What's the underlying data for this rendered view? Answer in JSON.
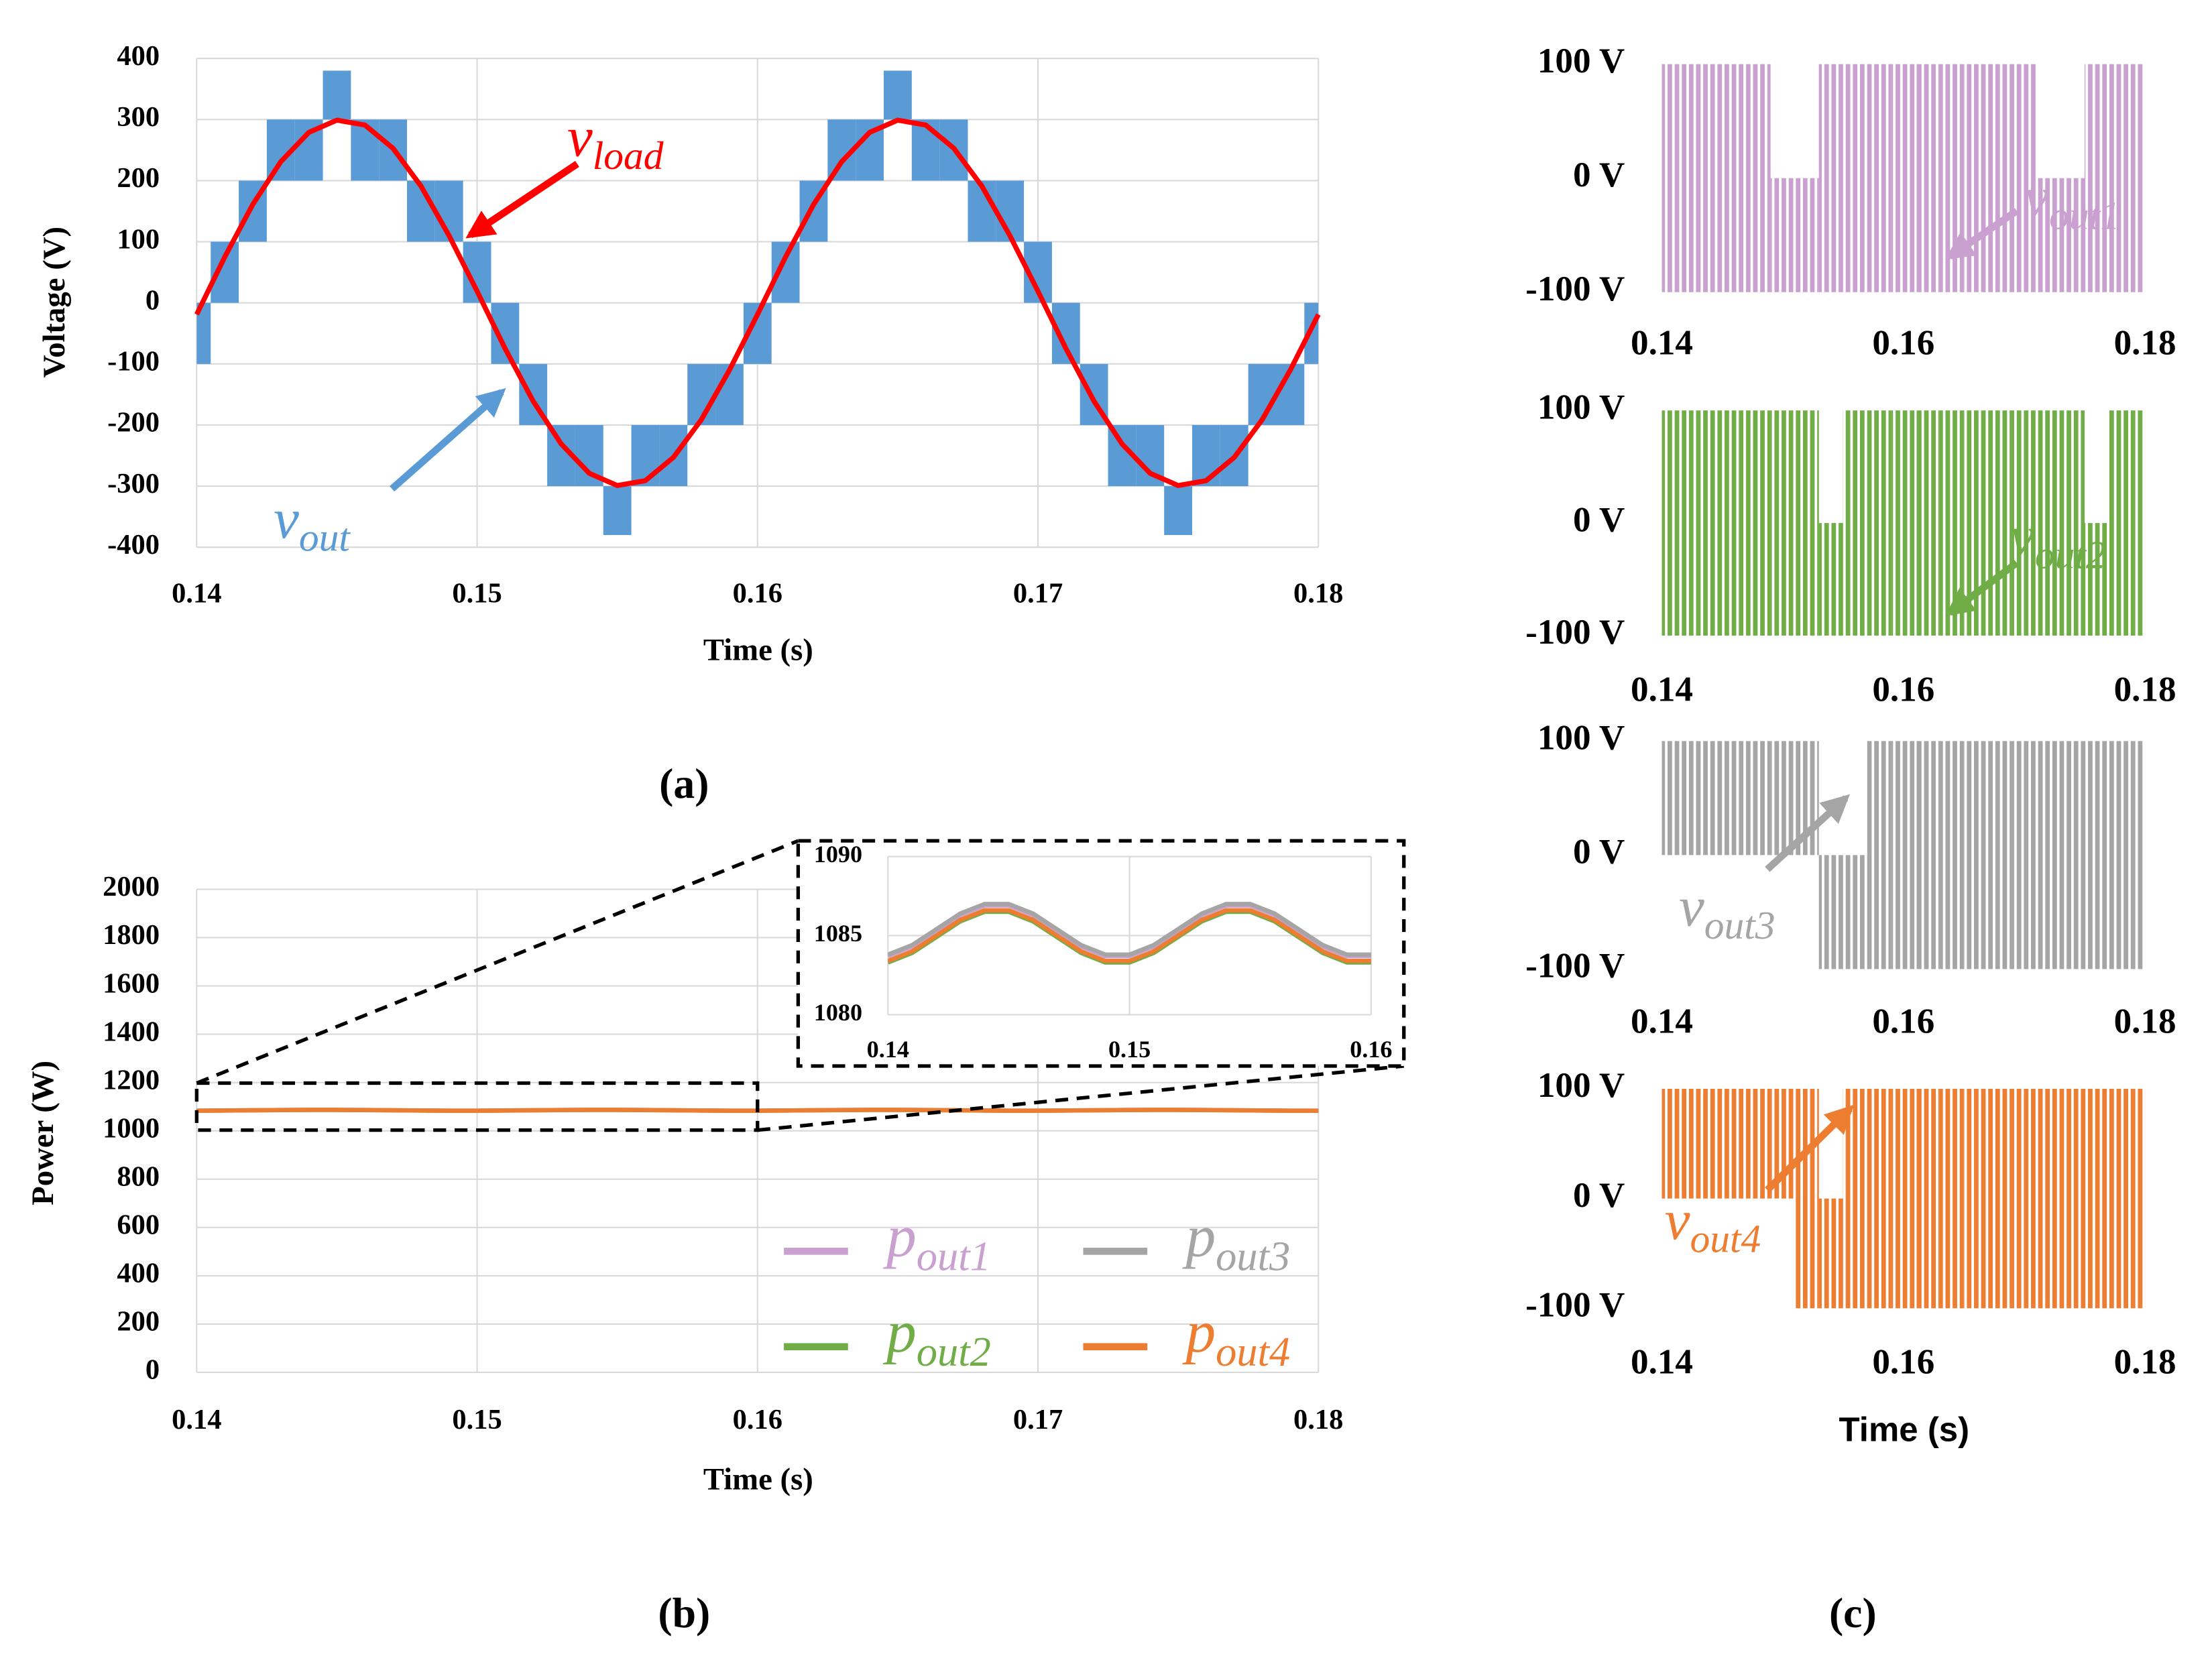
{
  "captions": [
    "(a)",
    "(b)",
    "(c)"
  ],
  "chart_data": [
    {
      "type": "line",
      "xlabel": "Time (s)",
      "ylabel": "Voltage (V)",
      "grid": true,
      "xlim": [
        0.14,
        0.18
      ],
      "xticks": [
        0.14,
        0.15,
        0.16,
        0.17,
        0.18
      ],
      "ylim": [
        -400,
        400
      ],
      "yticks": [
        -400,
        -300,
        -200,
        -100,
        0,
        100,
        200,
        300,
        400
      ],
      "x": [
        0.14,
        0.141,
        0.142,
        0.143,
        0.144,
        0.145,
        0.146,
        0.147,
        0.148,
        0.149,
        0.15,
        0.151,
        0.152,
        0.153,
        0.154,
        0.155,
        0.156,
        0.157,
        0.158,
        0.159,
        0.16,
        0.161,
        0.162,
        0.163,
        0.164,
        0.165,
        0.166,
        0.167,
        0.168,
        0.169,
        0.17,
        0.171,
        0.172,
        0.173,
        0.174,
        0.175,
        0.176,
        0.177,
        0.178,
        0.179,
        0.18
      ],
      "series": [
        {
          "name": {
            "base": "v",
            "sub": "out"
          },
          "color": "#5b9bd5",
          "values": [
            0,
            100,
            200,
            300,
            300,
            380,
            300,
            300,
            200,
            200,
            100,
            0,
            -100,
            -200,
            -200,
            -300,
            -200,
            -200,
            -100,
            -100,
            0,
            100,
            200,
            300,
            300,
            380,
            300,
            300,
            200,
            200,
            100,
            0,
            -100,
            -200,
            -200,
            -300,
            -200,
            -200,
            -100,
            -100,
            0
          ],
          "lower": [
            -100,
            0,
            100,
            200,
            200,
            300,
            200,
            200,
            100,
            100,
            0,
            -100,
            -200,
            -300,
            -300,
            -380,
            -300,
            -300,
            -200,
            -200,
            -100,
            0,
            100,
            200,
            200,
            300,
            200,
            200,
            100,
            100,
            0,
            -100,
            -200,
            -300,
            -300,
            -380,
            -300,
            -300,
            -200,
            -200,
            -100
          ]
        },
        {
          "name": {
            "base": "v",
            "sub": "load"
          },
          "color": "#ff0000",
          "values": [
            -19,
            75,
            161,
            231,
            279,
            299,
            291,
            253,
            191,
            110,
            19,
            -75,
            -161,
            -231,
            -279,
            -299,
            -291,
            -253,
            -191,
            -110,
            -19,
            75,
            161,
            231,
            279,
            299,
            291,
            253,
            191,
            110,
            19,
            -75,
            -161,
            -231,
            -279,
            -299,
            -291,
            -253,
            -191,
            -110,
            -19
          ]
        }
      ]
    },
    {
      "type": "line",
      "xlabel": "Time (s)",
      "ylabel": "Power (W)",
      "grid": true,
      "legend": "lower right",
      "xlim": [
        0.14,
        0.18
      ],
      "xticks": [
        0.14,
        0.15,
        0.16,
        0.17,
        0.18
      ],
      "ylim": [
        0,
        2000
      ],
      "yticks": [
        0,
        200,
        400,
        600,
        800,
        1000,
        1200,
        1400,
        1600,
        1800,
        2000
      ],
      "inset": {
        "xlim": [
          0.14,
          0.16
        ],
        "xticks": [
          0.14,
          0.15,
          0.16
        ],
        "ylim": [
          1080,
          1090
        ],
        "yticks": [
          1080,
          1085,
          1090
        ]
      },
      "x": [
        0.14,
        0.141,
        0.142,
        0.143,
        0.144,
        0.145,
        0.146,
        0.147,
        0.148,
        0.149,
        0.15,
        0.151,
        0.152,
        0.153,
        0.154,
        0.155,
        0.156,
        0.157,
        0.158,
        0.159,
        0.16,
        0.161,
        0.162,
        0.163,
        0.164,
        0.165,
        0.166,
        0.167,
        0.168,
        0.169,
        0.17,
        0.171,
        0.172,
        0.173,
        0.174,
        0.175,
        0.176,
        0.177,
        0.178,
        0.179,
        0.18
      ],
      "series": [
        {
          "name": {
            "base": "p",
            "sub": "out1"
          },
          "color": "#c9a0d0",
          "values": [
            1083.7,
            1084.3,
            1085.3,
            1086.3,
            1086.9,
            1086.9,
            1086.3,
            1085.3,
            1084.3,
            1083.7,
            1083.7,
            1084.3,
            1085.3,
            1086.3,
            1086.9,
            1086.9,
            1086.3,
            1085.3,
            1084.3,
            1083.7,
            1083.7,
            1084.3,
            1085.3,
            1086.3,
            1086.9,
            1086.9,
            1086.3,
            1085.3,
            1084.3,
            1083.7,
            1083.7,
            1084.3,
            1085.3,
            1086.3,
            1086.9,
            1086.9,
            1086.3,
            1085.3,
            1084.3,
            1083.7,
            1083.7
          ]
        },
        {
          "name": {
            "base": "p",
            "sub": "out2"
          },
          "color": "#70ad47",
          "values": [
            1083.3,
            1083.9,
            1084.9,
            1085.9,
            1086.5,
            1086.5,
            1085.9,
            1084.9,
            1083.9,
            1083.3,
            1083.3,
            1083.9,
            1084.9,
            1085.9,
            1086.5,
            1086.5,
            1085.9,
            1084.9,
            1083.9,
            1083.3,
            1083.3,
            1083.9,
            1084.9,
            1085.9,
            1086.5,
            1086.5,
            1085.9,
            1084.9,
            1083.9,
            1083.3,
            1083.3,
            1083.9,
            1084.9,
            1085.9,
            1086.5,
            1086.5,
            1085.9,
            1084.9,
            1083.9,
            1083.3,
            1083.3
          ]
        },
        {
          "name": {
            "base": "p",
            "sub": "out3"
          },
          "color": "#a5a5a5",
          "values": [
            1083.8,
            1084.4,
            1085.4,
            1086.4,
            1087,
            1087,
            1086.4,
            1085.4,
            1084.4,
            1083.8,
            1083.8,
            1084.4,
            1085.4,
            1086.4,
            1087,
            1087,
            1086.4,
            1085.4,
            1084.4,
            1083.8,
            1083.8,
            1084.4,
            1085.4,
            1086.4,
            1087,
            1087,
            1086.4,
            1085.4,
            1084.4,
            1083.8,
            1083.8,
            1084.4,
            1085.4,
            1086.4,
            1087,
            1087,
            1086.4,
            1085.4,
            1084.4,
            1083.8,
            1083.8
          ]
        },
        {
          "name": {
            "base": "p",
            "sub": "out4"
          },
          "color": "#ed7d31",
          "values": [
            1083.4,
            1084,
            1085,
            1086,
            1086.6,
            1086.6,
            1086,
            1085,
            1084,
            1083.4,
            1083.4,
            1084,
            1085,
            1086,
            1086.6,
            1086.6,
            1086,
            1085,
            1084,
            1083.4,
            1083.4,
            1084,
            1085,
            1086,
            1086.6,
            1086.6,
            1086,
            1085,
            1084,
            1083.4,
            1083.4,
            1084,
            1085,
            1086,
            1086.6,
            1086.6,
            1086,
            1085,
            1084,
            1083.4,
            1083.4
          ]
        }
      ]
    },
    {
      "type": "pwm",
      "xlim": [
        0.14,
        0.18
      ],
      "xticks": [
        0.14,
        0.16,
        0.18
      ],
      "ylim": [
        -100,
        100
      ],
      "yticks": [
        {
          "value": -100,
          "label": "-100 V"
        },
        {
          "value": 0,
          "label": "0 V"
        },
        {
          "value": 100,
          "label": "100 V"
        }
      ],
      "x": [
        0.14,
        0.142,
        0.144,
        0.146,
        0.148,
        0.15,
        0.152,
        0.154,
        0.156,
        0.158,
        0.16,
        0.162,
        0.164,
        0.166,
        0.168,
        0.17,
        0.172,
        0.174,
        0.176,
        0.178,
        0.18
      ],
      "series": [
        {
          "name": {
            "base": "v",
            "sub": "out1"
          },
          "color": "#c9a0d0",
          "values": [
            100,
            100,
            100,
            100,
            100,
            0,
            0,
            100,
            100,
            100,
            100,
            100,
            100,
            100,
            100,
            100,
            0,
            0,
            100,
            100,
            100
          ],
          "lower": [
            -100,
            -100,
            -100,
            -100,
            -100,
            -100,
            -100,
            -100,
            -100,
            -100,
            -100,
            -100,
            -100,
            -100,
            -100,
            -100,
            -100,
            -100,
            -100,
            -100,
            -100
          ]
        }
      ]
    },
    {
      "type": "pwm",
      "xlim": [
        0.14,
        0.18
      ],
      "xticks": [
        0.14,
        0.16,
        0.18
      ],
      "ylim": [
        -100,
        100
      ],
      "yticks": [
        {
          "value": -100,
          "label": "-100 V"
        },
        {
          "value": 0,
          "label": "0 V"
        },
        {
          "value": 100,
          "label": "100 V"
        }
      ],
      "x": [
        0.14,
        0.142,
        0.144,
        0.146,
        0.148,
        0.15,
        0.152,
        0.154,
        0.156,
        0.158,
        0.16,
        0.162,
        0.164,
        0.166,
        0.168,
        0.17,
        0.172,
        0.174,
        0.176,
        0.178,
        0.18
      ],
      "series": [
        {
          "name": {
            "base": "v",
            "sub": "out2"
          },
          "color": "#70ad47",
          "values": [
            100,
            100,
            100,
            100,
            100,
            100,
            100,
            0,
            100,
            100,
            100,
            100,
            100,
            100,
            100,
            100,
            100,
            100,
            0,
            100,
            100
          ],
          "lower": [
            -100,
            -100,
            -100,
            -100,
            -100,
            -100,
            -100,
            -100,
            -100,
            -100,
            -100,
            -100,
            -100,
            -100,
            -100,
            -100,
            -100,
            -100,
            -100,
            -100,
            -100
          ]
        }
      ]
    },
    {
      "type": "pwm",
      "xlim": [
        0.14,
        0.18
      ],
      "xticks": [
        0.14,
        0.16,
        0.18
      ],
      "ylim": [
        -100,
        100
      ],
      "yticks": [
        {
          "value": -100,
          "label": "-100 V"
        },
        {
          "value": 0,
          "label": "0 V"
        },
        {
          "value": 100,
          "label": "100 V"
        }
      ],
      "x": [
        0.14,
        0.142,
        0.144,
        0.146,
        0.148,
        0.15,
        0.152,
        0.154,
        0.156,
        0.158,
        0.16,
        0.162,
        0.164,
        0.166,
        0.168,
        0.17,
        0.172,
        0.174,
        0.176,
        0.178,
        0.18
      ],
      "series": [
        {
          "name": {
            "base": "v",
            "sub": "out3"
          },
          "color": "#a5a5a5",
          "values": [
            100,
            100,
            100,
            100,
            100,
            100,
            100,
            0,
            0,
            100,
            100,
            100,
            100,
            100,
            100,
            100,
            100,
            100,
            100,
            100,
            100
          ],
          "lower": [
            0,
            0,
            0,
            0,
            0,
            0,
            0,
            -100,
            -100,
            -100,
            -100,
            -100,
            -100,
            -100,
            -100,
            -100,
            -100,
            -100,
            -100,
            -100,
            -100
          ]
        }
      ]
    },
    {
      "type": "pwm",
      "xlabel": "Time (s)",
      "xlim": [
        0.14,
        0.18
      ],
      "xticks": [
        0.14,
        0.16,
        0.18
      ],
      "ylim": [
        -100,
        100
      ],
      "yticks": [
        {
          "value": -100,
          "label": "-100 V"
        },
        {
          "value": 0,
          "label": "0 V"
        },
        {
          "value": 100,
          "label": "100 V"
        }
      ],
      "x": [
        0.14,
        0.142,
        0.144,
        0.146,
        0.148,
        0.15,
        0.152,
        0.154,
        0.156,
        0.158,
        0.16,
        0.162,
        0.164,
        0.166,
        0.168,
        0.17,
        0.172,
        0.174,
        0.176,
        0.178,
        0.18
      ],
      "series": [
        {
          "name": {
            "base": "v",
            "sub": "out4"
          },
          "color": "#ed7d31",
          "values": [
            100,
            100,
            100,
            100,
            100,
            100,
            100,
            0,
            100,
            100,
            100,
            100,
            100,
            100,
            100,
            100,
            100,
            100,
            100,
            100,
            100
          ],
          "lower": [
            0,
            0,
            0,
            0,
            0,
            0,
            -100,
            -100,
            -100,
            -100,
            -100,
            -100,
            -100,
            -100,
            -100,
            -100,
            -100,
            -100,
            -100,
            -100,
            -100
          ]
        }
      ]
    }
  ]
}
